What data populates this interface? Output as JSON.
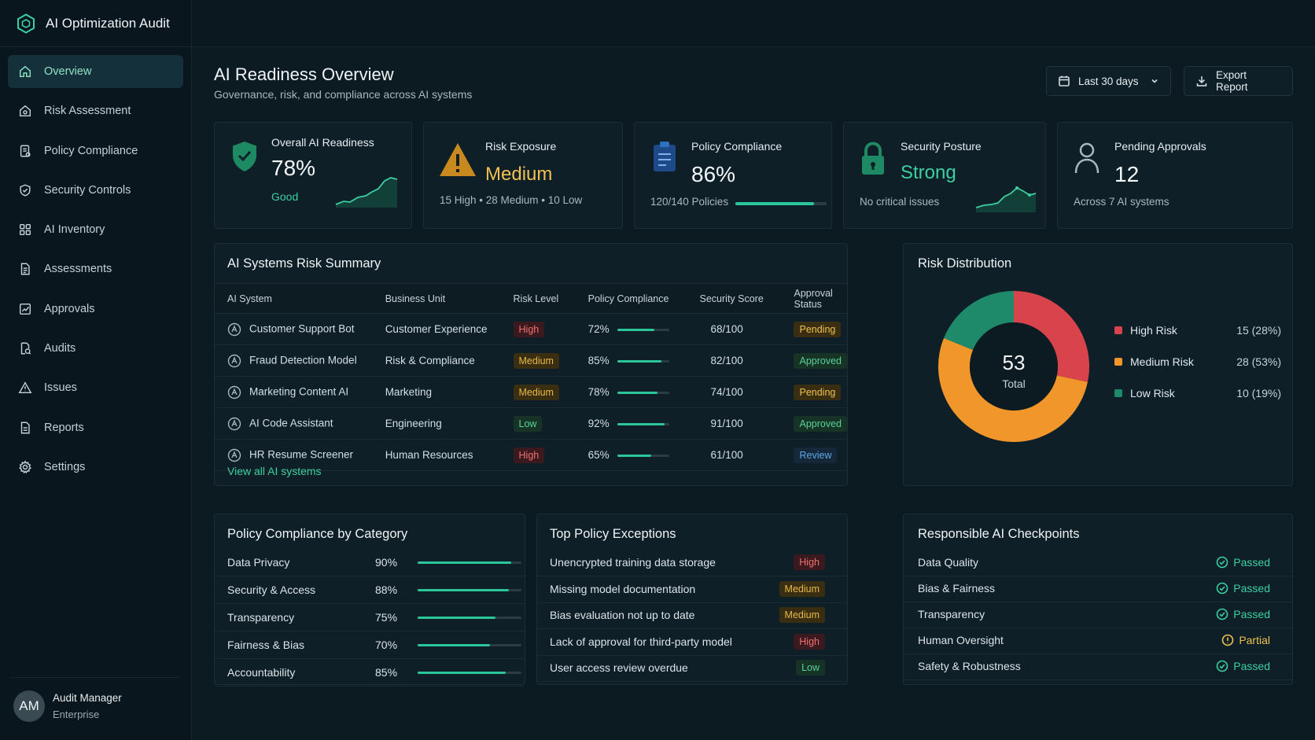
{
  "app": {
    "title": "AI Optimization Audit"
  },
  "sidebar": {
    "items": [
      {
        "label": "Overview",
        "icon": "home-icon"
      },
      {
        "label": "Risk Assessment",
        "icon": "risk-icon"
      },
      {
        "label": "Policy Compliance",
        "icon": "policy-icon"
      },
      {
        "label": "Security Controls",
        "icon": "shield-icon"
      },
      {
        "label": "AI Inventory",
        "icon": "grid-icon"
      },
      {
        "label": "Assessments",
        "icon": "document-icon"
      },
      {
        "label": "Approvals",
        "icon": "approval-icon"
      },
      {
        "label": "Audits",
        "icon": "audit-icon"
      },
      {
        "label": "Issues",
        "icon": "warning-icon"
      },
      {
        "label": "Reports",
        "icon": "report-icon"
      },
      {
        "label": "Settings",
        "icon": "gear-icon"
      }
    ],
    "user": {
      "initials": "AM",
      "name": "Audit Manager",
      "role": "Enterprise"
    }
  },
  "header": {
    "title": "AI Readiness Overview",
    "subtitle": "Governance, risk, and compliance across AI systems",
    "date_range": "Last 30 days",
    "export_label": "Export Report"
  },
  "kpis": {
    "readiness": {
      "label": "Overall AI Readiness",
      "value": "78%",
      "status": "Good"
    },
    "risk": {
      "label": "Risk Exposure",
      "value": "Medium",
      "breakdown": "15 High • 28 Medium • 10 Low"
    },
    "policy": {
      "label": "Policy Compliance",
      "value": "86%",
      "detail": "120/140 Policies",
      "progress": 0.86
    },
    "security": {
      "label": "Security Posture",
      "value": "Strong",
      "detail": "No critical issues"
    },
    "approvals": {
      "label": "Pending Approvals",
      "value": "12",
      "detail": "Across 7 AI systems"
    }
  },
  "risk_summary": {
    "title": "AI Systems Risk Summary",
    "columns": [
      "AI System",
      "Business Unit",
      "Risk Level",
      "Policy Compliance",
      "Security Score",
      "Approval Status"
    ],
    "rows": [
      {
        "system": "Customer Support Bot",
        "unit": "Customer Experience",
        "risk": "High",
        "compliance": "72%",
        "compliance_value": 0.72,
        "score": "68/100",
        "status": "Pending"
      },
      {
        "system": "Fraud Detection Model",
        "unit": "Risk & Compliance",
        "risk": "Medium",
        "compliance": "85%",
        "compliance_value": 0.85,
        "score": "82/100",
        "status": "Approved"
      },
      {
        "system": "Marketing Content AI",
        "unit": "Marketing",
        "risk": "Medium",
        "compliance": "78%",
        "compliance_value": 0.78,
        "score": "74/100",
        "status": "Pending"
      },
      {
        "system": "AI Code Assistant",
        "unit": "Engineering",
        "risk": "Low",
        "compliance": "92%",
        "compliance_value": 0.92,
        "score": "91/100",
        "status": "Approved"
      },
      {
        "system": "HR Resume Screener",
        "unit": "Human Resources",
        "risk": "High",
        "compliance": "65%",
        "compliance_value": 0.65,
        "score": "61/100",
        "status": "Review"
      }
    ],
    "link": "View all AI systems"
  },
  "risk_distribution": {
    "title": "Risk Distribution",
    "total": "53",
    "total_label": "Total",
    "legend": [
      {
        "label": "High Risk",
        "value": "15 (28%)",
        "color": "#d9434b"
      },
      {
        "label": "Medium Risk",
        "value": "28 (53%)",
        "color": "#f0962a"
      },
      {
        "label": "Low Risk",
        "value": "10 (19%)",
        "color": "#1f8a6a"
      }
    ]
  },
  "chart_data": {
    "type": "pie",
    "categories": [
      "High Risk",
      "Medium Risk",
      "Low Risk"
    ],
    "values": [
      15,
      28,
      10
    ],
    "title": "Risk Distribution"
  },
  "policy_by_category": {
    "title": "Policy Compliance by Category",
    "rows": [
      {
        "label": "Data Privacy",
        "pct": "90%",
        "value": 0.9
      },
      {
        "label": "Security & Access",
        "pct": "88%",
        "value": 0.88
      },
      {
        "label": "Transparency",
        "pct": "75%",
        "value": 0.75
      },
      {
        "label": "Fairness & Bias",
        "pct": "70%",
        "value": 0.7
      },
      {
        "label": "Accountability",
        "pct": "85%",
        "value": 0.85
      }
    ]
  },
  "exceptions": {
    "title": "Top Policy Exceptions",
    "rows": [
      {
        "label": "Unencrypted training data storage",
        "level": "High"
      },
      {
        "label": "Missing model documentation",
        "level": "Medium"
      },
      {
        "label": "Bias evaluation not up to date",
        "level": "Medium"
      },
      {
        "label": "Lack of approval for third-party model",
        "level": "High"
      },
      {
        "label": "User access review overdue",
        "level": "Low"
      }
    ]
  },
  "checkpoints": {
    "title": "Responsible AI Checkpoints",
    "rows": [
      {
        "label": "Data Quality",
        "status": "Passed"
      },
      {
        "label": "Bias & Fairness",
        "status": "Passed"
      },
      {
        "label": "Transparency",
        "status": "Passed"
      },
      {
        "label": "Human Oversight",
        "status": "Partial"
      },
      {
        "label": "Safety & Robustness",
        "status": "Passed"
      }
    ]
  }
}
